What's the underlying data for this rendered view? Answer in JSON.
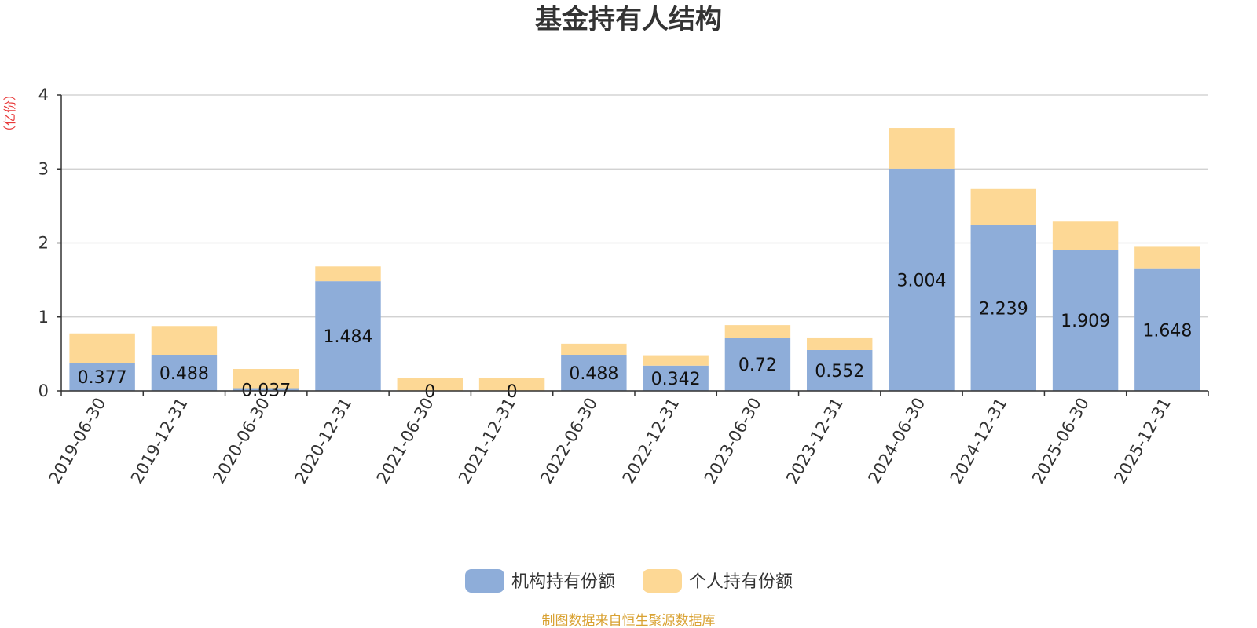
{
  "chart_data": {
    "type": "bar",
    "stacked": true,
    "title": "基金持有人结构",
    "ylabel": "（亿份）",
    "xlabel": "",
    "ylim": [
      0,
      4
    ],
    "yticks": [
      0,
      1,
      2,
      3,
      4
    ],
    "grid": true,
    "legend_position": "bottom-center",
    "categories": [
      "2019-06-30",
      "2019-12-31",
      "2020-06-30",
      "2020-12-31",
      "2021-06-30",
      "2021-12-31",
      "2022-06-30",
      "2022-12-31",
      "2023-06-30",
      "2023-12-31",
      "2024-06-30",
      "2024-12-31",
      "2025-06-30",
      "2025-12-31"
    ],
    "series": [
      {
        "name": "机构持有份额",
        "color": "#8eadd9",
        "values": [
          0.377,
          0.488,
          0.037,
          1.484,
          0,
          0,
          0.488,
          0.342,
          0.72,
          0.552,
          3.004,
          2.239,
          1.909,
          1.648
        ],
        "labels": [
          "0.377",
          "0.488",
          "0.037",
          "1.484",
          "0",
          "0",
          "0.488",
          "0.342",
          "0.72",
          "0.552",
          "3.004",
          "2.239",
          "1.909",
          "1.648"
        ]
      },
      {
        "name": "个人持有份额",
        "color": "#fdd895",
        "values": [
          0.4,
          0.39,
          0.26,
          0.2,
          0.18,
          0.17,
          0.15,
          0.14,
          0.17,
          0.17,
          0.55,
          0.49,
          0.38,
          0.3
        ]
      }
    ],
    "source": "制图数据来自恒生聚源数据库"
  }
}
